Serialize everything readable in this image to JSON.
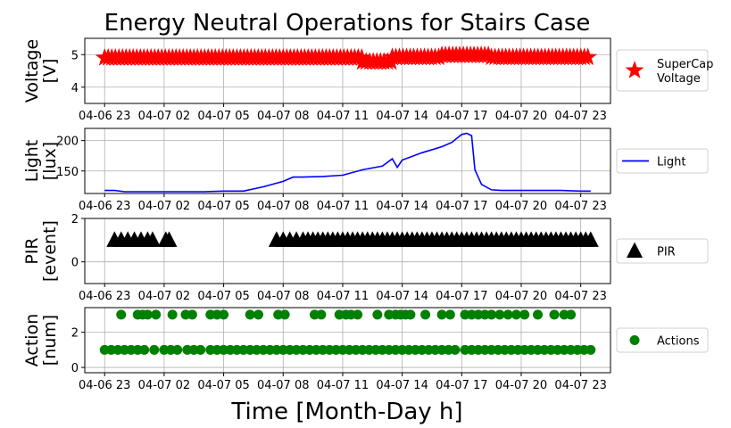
{
  "title": "Energy Neutral Operations for Stairs Case",
  "xlabel": "Time [Month-Day h]",
  "x_ticks": [
    "04-06 23",
    "04-07 02",
    "04-07 05",
    "04-07 08",
    "04-07 11",
    "04-07 14",
    "04-07 17",
    "04-07 20",
    "04-07 23"
  ],
  "colors": {
    "voltage": "#ff0000",
    "light": "#0000ff",
    "pir": "#000000",
    "actions": "#008000",
    "grid": "#b0b0b0"
  },
  "chart_data": [
    {
      "type": "scatter",
      "marker": "star",
      "ylabel": "Voltage\n[V]",
      "y_ticks": [
        4,
        5
      ],
      "ylim": [
        3.5,
        5.5
      ],
      "xlim": [
        "04-06 22:00",
        "04-08 00:30"
      ],
      "grid": true,
      "legend": {
        "label": "SuperCap\nVoltage",
        "placement": "right"
      },
      "series": [
        {
          "x_start": "04-06 23:00",
          "x_end": "04-07 23:30",
          "y": 4.9
        }
      ],
      "notes_segments": [
        {
          "x": [
            "04-06 23:00",
            "04-07 12:00"
          ],
          "y": 4.9
        },
        {
          "x": [
            "04-07 12:00",
            "04-07 13:30"
          ],
          "y": 4.78
        },
        {
          "x": [
            "04-07 13:30",
            "04-07 16:00"
          ],
          "y": 4.92
        },
        {
          "x": [
            "04-07 16:00",
            "04-07 18:30"
          ],
          "y": 4.98
        },
        {
          "x": [
            "04-07 18:30",
            "04-07 23:30"
          ],
          "y": 4.92
        }
      ]
    },
    {
      "type": "line",
      "ylabel": "Light\n[lux]",
      "y_ticks": [
        150,
        200
      ],
      "ylim": [
        113,
        220
      ],
      "xlim": [
        "04-06 22:00",
        "04-08 00:30"
      ],
      "grid": true,
      "legend": {
        "label": "Light",
        "placement": "right"
      },
      "series": [
        {
          "name": "Light",
          "x": [
            "04-06 23:00",
            "04-06 23:30",
            "04-07 00:00",
            "04-07 01:00",
            "04-07 02:00",
            "04-07 03:00",
            "04-07 04:00",
            "04-07 05:00",
            "04-07 06:00",
            "04-07 07:00",
            "04-07 08:00",
            "04-07 08:30",
            "04-07 09:00",
            "04-07 10:00",
            "04-07 11:00",
            "04-07 12:00",
            "04-07 13:00",
            "04-07 13:30",
            "04-07 13:45",
            "04-07 14:00",
            "04-07 15:00",
            "04-07 16:00",
            "04-07 16:30",
            "04-07 17:00",
            "04-07 17:15",
            "04-07 17:30",
            "04-07 17:40",
            "04-07 18:00",
            "04-07 18:30",
            "04-07 19:00",
            "04-07 20:00",
            "04-07 21:00",
            "04-07 22:00",
            "04-07 23:00",
            "04-07 23:30"
          ],
          "y": [
            118,
            118,
            116,
            116,
            116,
            116,
            116,
            117,
            117,
            124,
            133,
            140,
            140,
            141,
            143,
            152,
            158,
            170,
            156,
            168,
            180,
            190,
            197,
            210,
            212,
            208,
            152,
            128,
            119,
            118,
            118,
            118,
            118,
            117,
            117
          ]
        }
      ]
    },
    {
      "type": "scatter",
      "marker": "triangle",
      "ylabel": "PIR\n[event]",
      "y_ticks": [
        0,
        2
      ],
      "ylim": [
        -1,
        2
      ],
      "xlim": [
        "04-06 22:00",
        "04-08 00:30"
      ],
      "grid": true,
      "legend": {
        "label": "PIR",
        "placement": "right"
      },
      "series": [
        {
          "name": "PIR",
          "y": 1,
          "x": [
            "04-06 23:30",
            "04-06 23:50",
            "04-07 00:10",
            "04-07 00:30",
            "04-07 00:50",
            "04-07 01:10",
            "04-07 01:25",
            "04-07 02:05",
            "04-07 02:15",
            "04-07 07:40",
            "04-07 08:00",
            "04-07 08:20",
            "04-07 08:40",
            "04-07 09:00",
            "04-07 09:15",
            "04-07 09:30",
            "04-07 09:45",
            "04-07 10:00",
            "04-07 10:15",
            "04-07 10:30",
            "04-07 10:45",
            "04-07 11:00",
            "04-07 11:15",
            "04-07 11:30",
            "04-07 11:45",
            "04-07 12:00",
            "04-07 12:15",
            "04-07 12:30",
            "04-07 12:45",
            "04-07 13:00",
            "04-07 13:15",
            "04-07 13:30",
            "04-07 13:45",
            "04-07 14:00",
            "04-07 14:15",
            "04-07 14:30",
            "04-07 14:45",
            "04-07 15:00",
            "04-07 15:15",
            "04-07 15:30",
            "04-07 15:45",
            "04-07 16:00",
            "04-07 16:15",
            "04-07 16:30",
            "04-07 16:45",
            "04-07 17:00",
            "04-07 17:15",
            "04-07 17:30",
            "04-07 17:45",
            "04-07 18:00",
            "04-07 18:15",
            "04-07 18:30",
            "04-07 18:45",
            "04-07 19:00",
            "04-07 19:15",
            "04-07 19:30",
            "04-07 19:45",
            "04-07 20:00",
            "04-07 20:15",
            "04-07 20:30",
            "04-07 20:45",
            "04-07 21:00",
            "04-07 21:15",
            "04-07 21:30",
            "04-07 21:45",
            "04-07 22:00",
            "04-07 22:15",
            "04-07 22:30",
            "04-07 22:45",
            "04-07 23:00",
            "04-07 23:15",
            "04-07 23:30"
          ]
        }
      ]
    },
    {
      "type": "scatter",
      "marker": "circle",
      "ylabel": "Action\n[num]",
      "y_ticks": [
        0,
        2
      ],
      "ylim": [
        -0.3,
        3.4
      ],
      "xlim": [
        "04-06 22:00",
        "04-08 00:30"
      ],
      "grid": true,
      "legend": {
        "label": "Actions",
        "placement": "right"
      },
      "series": [
        {
          "name": "Actions",
          "points": [
            {
              "x": "04-06 23:50",
              "y": 3
            },
            {
              "x": "04-07 00:40",
              "y": 3
            },
            {
              "x": "04-07 00:55",
              "y": 3
            },
            {
              "x": "04-07 01:10",
              "y": 3
            },
            {
              "x": "04-07 01:35",
              "y": 3
            },
            {
              "x": "04-07 02:25",
              "y": 3
            },
            {
              "x": "04-07 03:05",
              "y": 3
            },
            {
              "x": "04-07 03:25",
              "y": 3
            },
            {
              "x": "04-07 04:20",
              "y": 3
            },
            {
              "x": "04-07 04:40",
              "y": 3
            },
            {
              "x": "04-07 05:00",
              "y": 3
            },
            {
              "x": "04-07 06:20",
              "y": 3
            },
            {
              "x": "04-07 06:45",
              "y": 3
            },
            {
              "x": "04-07 07:45",
              "y": 3
            },
            {
              "x": "04-07 08:05",
              "y": 3
            },
            {
              "x": "04-07 09:35",
              "y": 3
            },
            {
              "x": "04-07 09:55",
              "y": 3
            },
            {
              "x": "04-07 10:50",
              "y": 3
            },
            {
              "x": "04-07 11:10",
              "y": 3
            },
            {
              "x": "04-07 11:25",
              "y": 3
            },
            {
              "x": "04-07 11:45",
              "y": 3
            },
            {
              "x": "04-07 12:45",
              "y": 3
            },
            {
              "x": "04-07 13:20",
              "y": 3
            },
            {
              "x": "04-07 13:40",
              "y": 3
            },
            {
              "x": "04-07 13:55",
              "y": 3
            },
            {
              "x": "04-07 14:10",
              "y": 3
            },
            {
              "x": "04-07 14:25",
              "y": 3
            },
            {
              "x": "04-07 15:10",
              "y": 3
            },
            {
              "x": "04-07 16:00",
              "y": 3
            },
            {
              "x": "04-07 16:25",
              "y": 3
            },
            {
              "x": "04-07 17:10",
              "y": 3
            },
            {
              "x": "04-07 17:30",
              "y": 3
            },
            {
              "x": "04-07 17:50",
              "y": 3
            },
            {
              "x": "04-07 18:10",
              "y": 3
            },
            {
              "x": "04-07 18:30",
              "y": 3
            },
            {
              "x": "04-07 18:55",
              "y": 3
            },
            {
              "x": "04-07 19:20",
              "y": 3
            },
            {
              "x": "04-07 19:45",
              "y": 3
            },
            {
              "x": "04-07 20:10",
              "y": 3
            },
            {
              "x": "04-07 20:50",
              "y": 3
            },
            {
              "x": "04-07 21:40",
              "y": 3
            },
            {
              "x": "04-07 22:10",
              "y": 3
            },
            {
              "x": "04-07 22:30",
              "y": 3
            }
          ],
          "baseline": {
            "y": 1,
            "x": [
              "04-06 23:00",
              "04-06 23:20",
              "04-06 23:40",
              "04-07 00:00",
              "04-07 00:20",
              "04-07 00:40",
              "04-07 01:00",
              "04-07 01:30",
              "04-07 02:00",
              "04-07 02:20",
              "04-07 02:40",
              "04-07 03:10",
              "04-07 03:30",
              "04-07 03:50",
              "04-07 04:20",
              "04-07 04:40",
              "04-07 05:00",
              "04-07 05:20",
              "04-07 05:40",
              "04-07 06:00",
              "04-07 06:20",
              "04-07 06:40",
              "04-07 07:00",
              "04-07 07:20",
              "04-07 07:40",
              "04-07 08:00",
              "04-07 08:20",
              "04-07 08:40",
              "04-07 09:00",
              "04-07 09:20",
              "04-07 09:40",
              "04-07 10:00",
              "04-07 10:20",
              "04-07 10:40",
              "04-07 11:00",
              "04-07 11:20",
              "04-07 11:40",
              "04-07 12:00",
              "04-07 12:20",
              "04-07 12:40",
              "04-07 13:00",
              "04-07 13:20",
              "04-07 13:40",
              "04-07 14:00",
              "04-07 14:20",
              "04-07 14:40",
              "04-07 15:00",
              "04-07 15:20",
              "04-07 15:40",
              "04-07 16:00",
              "04-07 16:20",
              "04-07 16:40",
              "04-07 17:10",
              "04-07 17:30",
              "04-07 17:50",
              "04-07 18:10",
              "04-07 18:30",
              "04-07 18:50",
              "04-07 19:10",
              "04-07 19:30",
              "04-07 19:50",
              "04-07 20:10",
              "04-07 20:30",
              "04-07 20:50",
              "04-07 21:10",
              "04-07 21:30",
              "04-07 21:50",
              "04-07 22:10",
              "04-07 22:30",
              "04-07 22:50",
              "04-07 23:10",
              "04-07 23:30"
            ]
          }
        }
      ]
    }
  ]
}
